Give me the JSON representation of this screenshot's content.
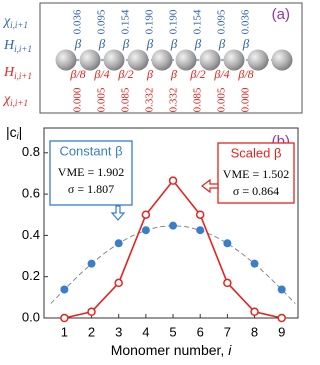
{
  "panel_a": {
    "label": "(a)",
    "label_color": "#9b2fae",
    "row_labels": [
      {
        "symbol": "χ",
        "sub": "i,i+1",
        "color": "#2f62b5"
      },
      {
        "symbol": "H",
        "sub": "i,i+1",
        "color": "#2f62b5"
      },
      {
        "symbol": "H",
        "sub": "i,i+1",
        "color": "#e3231f"
      },
      {
        "symbol": "χ",
        "sub": "i,i+1",
        "color": "#e3231f"
      }
    ],
    "top_values": [
      "0.036",
      "0.095",
      "0.154",
      "0.190",
      "0.190",
      "0.154",
      "0.095",
      "0.036"
    ],
    "blue_couplings": [
      "β",
      "β",
      "β",
      "β",
      "β",
      "β",
      "β",
      "β"
    ],
    "red_couplings": [
      "β/8",
      "β/4",
      "β/2",
      "β",
      "β",
      "β/2",
      "β/4",
      "β/8"
    ],
    "bottom_values": [
      "0.000",
      "0.005",
      "0.085",
      "0.332",
      "0.332",
      "0.085",
      "0.005",
      "0.000"
    ]
  },
  "chart_data": {
    "type": "line",
    "panel_label": "(b)",
    "panel_label_color": "#9b2fae",
    "y_label": {
      "pre": "|c",
      "sub": "i",
      "post": "|"
    },
    "x_label": {
      "text": "Monomer number, ",
      "italic": "i"
    },
    "x": [
      1,
      2,
      3,
      4,
      5,
      6,
      7,
      8,
      9
    ],
    "series": [
      {
        "name": "Constant β",
        "color": "#3a7dc9",
        "marker": "filled",
        "line": false,
        "values": [
          0.138,
          0.263,
          0.362,
          0.425,
          0.447,
          0.425,
          0.362,
          0.263,
          0.138
        ]
      },
      {
        "name": "Scaled β",
        "color": "#e3231f",
        "marker": "open",
        "line": true,
        "values": [
          0.0,
          0.03,
          0.17,
          0.5,
          0.665,
          0.5,
          0.17,
          0.03,
          0.0
        ]
      }
    ],
    "curve": {
      "color": "#888888",
      "dashed": true,
      "x": [
        0.5,
        1,
        1.5,
        2,
        2.5,
        3,
        3.5,
        4,
        4.5,
        5,
        5.5,
        6,
        6.5,
        7,
        7.5,
        8,
        8.5,
        9,
        9.5
      ],
      "values": [
        0.07,
        0.138,
        0.203,
        0.263,
        0.316,
        0.362,
        0.398,
        0.425,
        0.442,
        0.447,
        0.442,
        0.425,
        0.398,
        0.362,
        0.316,
        0.263,
        0.203,
        0.138,
        0.07
      ]
    },
    "annotations": [
      {
        "lines": [
          "Constant β",
          "VME = 1.902",
          "σ = 1.807"
        ],
        "color": "#3a7dc9"
      },
      {
        "lines": [
          "Scaled β",
          "VME = 1.502",
          "σ = 0.864"
        ],
        "color": "#e3231f"
      }
    ],
    "xlim": [
      0.25,
      9.6
    ],
    "ylim": [
      0,
      0.92
    ],
    "xticks": [
      1,
      2,
      3,
      4,
      5,
      6,
      7,
      8,
      9
    ],
    "yticks": [
      {
        "value": 0,
        "label": "0.0"
      },
      {
        "value": 0.2,
        "label": "0.2"
      },
      {
        "value": 0.4,
        "label": "0.4"
      },
      {
        "value": 0.6,
        "label": "0.6"
      },
      {
        "value": 0.8,
        "label": "0.8"
      }
    ]
  }
}
